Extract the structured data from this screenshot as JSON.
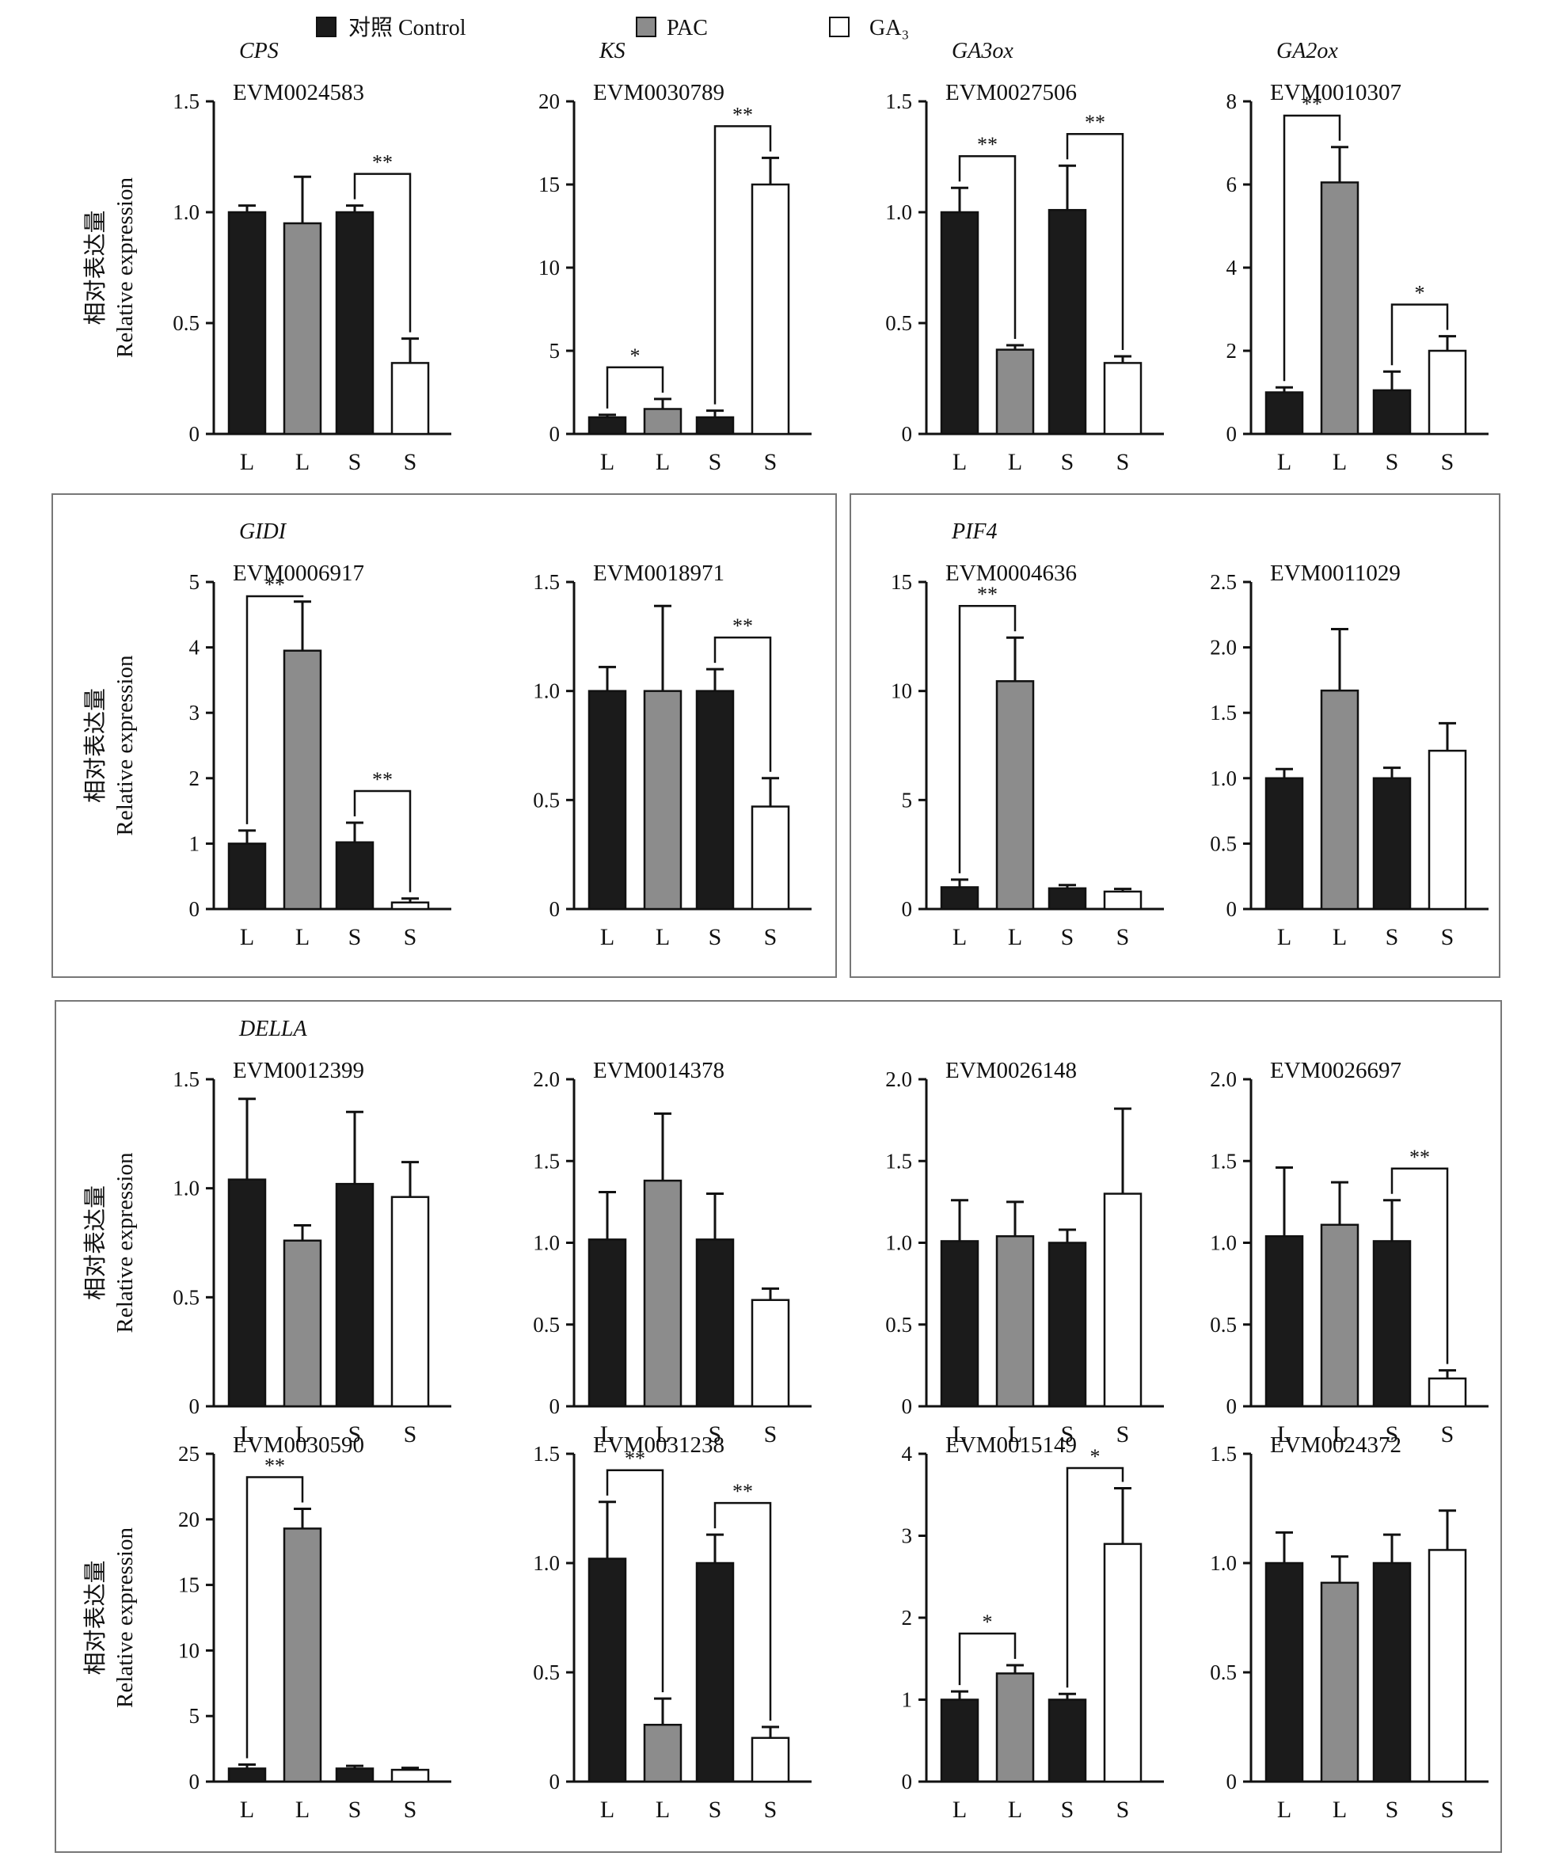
{
  "legend": [
    {
      "label": "对照 Control",
      "fill": "#1b1b1b"
    },
    {
      "label": "PAC",
      "fill": "#8c8c8c"
    },
    {
      "label": "GA₃",
      "fill": "#ffffff"
    }
  ],
  "y_label_cn": "相对表达量",
  "y_label_en": "Relative expression",
  "colors": {
    "control": "#1b1b1b",
    "pac": "#8c8c8c",
    "ga3": "#ffffff",
    "axis": "#111111",
    "frame": "#777777"
  },
  "chart_data": [
    {
      "id": "cps",
      "type": "bar",
      "gene": "CPS",
      "title": "EVM0024583",
      "categories": [
        "L",
        "L",
        "S",
        "S"
      ],
      "series": [
        "Control",
        "PAC",
        "Control",
        "GA3"
      ],
      "values": [
        1.0,
        0.95,
        1.0,
        0.32
      ],
      "errors": [
        0.03,
        0.21,
        0.03,
        0.11
      ],
      "ylim": [
        0,
        1.5
      ],
      "yticks": [
        "0",
        "0.5",
        "1.0",
        "1.5"
      ],
      "ylabel": "相对表达量 Relative expression",
      "significance": [
        {
          "pair": [
            2,
            3
          ],
          "label": "**"
        }
      ]
    },
    {
      "id": "ks",
      "type": "bar",
      "gene": "KS",
      "title": "EVM0030789",
      "categories": [
        "L",
        "L",
        "S",
        "S"
      ],
      "series": [
        "Control",
        "PAC",
        "Control",
        "GA3"
      ],
      "values": [
        1.0,
        1.5,
        1.0,
        15.0
      ],
      "errors": [
        0.15,
        0.6,
        0.4,
        1.6
      ],
      "ylim": [
        0,
        20
      ],
      "yticks": [
        "0",
        "5",
        "10",
        "15",
        "20"
      ],
      "significance": [
        {
          "pair": [
            0,
            1
          ],
          "label": "*"
        },
        {
          "pair": [
            2,
            3
          ],
          "label": "**"
        }
      ]
    },
    {
      "id": "ga3ox",
      "type": "bar",
      "gene": "GA3ox",
      "title": "EVM0027506",
      "categories": [
        "L",
        "L",
        "S",
        "S"
      ],
      "series": [
        "Control",
        "PAC",
        "Control",
        "GA3"
      ],
      "values": [
        1.0,
        0.38,
        1.01,
        0.32
      ],
      "errors": [
        0.11,
        0.02,
        0.2,
        0.03
      ],
      "ylim": [
        0,
        1.5
      ],
      "yticks": [
        "0",
        "0.5",
        "1.0",
        "1.5"
      ],
      "significance": [
        {
          "pair": [
            0,
            1
          ],
          "label": "**"
        },
        {
          "pair": [
            2,
            3
          ],
          "label": "**"
        }
      ]
    },
    {
      "id": "ga2ox",
      "type": "bar",
      "gene": "GA2ox",
      "title": "EVM0010307",
      "categories": [
        "L",
        "L",
        "S",
        "S"
      ],
      "series": [
        "Control",
        "PAC",
        "Control",
        "GA3"
      ],
      "values": [
        1.0,
        6.05,
        1.05,
        2.0
      ],
      "errors": [
        0.12,
        0.85,
        0.45,
        0.35
      ],
      "ylim": [
        0,
        8
      ],
      "yticks": [
        "0",
        "2",
        "4",
        "6",
        "8"
      ],
      "significance": [
        {
          "pair": [
            0,
            1
          ],
          "label": "**"
        },
        {
          "pair": [
            2,
            3
          ],
          "label": "*"
        }
      ]
    },
    {
      "id": "gid1",
      "type": "bar",
      "gene": "GIDI",
      "title": "EVM0006917",
      "categories": [
        "L",
        "L",
        "S",
        "S"
      ],
      "series": [
        "Control",
        "PAC",
        "Control",
        "GA3"
      ],
      "values": [
        1.0,
        3.95,
        1.02,
        0.1
      ],
      "errors": [
        0.2,
        0.75,
        0.3,
        0.06
      ],
      "ylim": [
        0,
        5
      ],
      "yticks": [
        "0",
        "1",
        "2",
        "3",
        "4",
        "5"
      ],
      "ylabel": "相对表达量 Relative expression",
      "significance": [
        {
          "pair": [
            0,
            1
          ],
          "label": "**"
        },
        {
          "pair": [
            2,
            3
          ],
          "label": "**"
        }
      ]
    },
    {
      "id": "gid1b",
      "type": "bar",
      "gene": "",
      "title": "EVM0018971",
      "categories": [
        "L",
        "L",
        "S",
        "S"
      ],
      "series": [
        "Control",
        "PAC",
        "Control",
        "GA3"
      ],
      "values": [
        1.0,
        1.0,
        1.0,
        0.47
      ],
      "errors": [
        0.11,
        0.39,
        0.1,
        0.13
      ],
      "ylim": [
        0,
        1.5
      ],
      "yticks": [
        "0",
        "0.5",
        "1.0",
        "1.5"
      ],
      "significance": [
        {
          "pair": [
            2,
            3
          ],
          "label": "**"
        }
      ]
    },
    {
      "id": "pif4",
      "type": "bar",
      "gene": "PIF4",
      "title": "EVM0004636",
      "categories": [
        "L",
        "L",
        "S",
        "S"
      ],
      "series": [
        "Control",
        "PAC",
        "Control",
        "GA3"
      ],
      "values": [
        1.0,
        10.45,
        0.95,
        0.8
      ],
      "errors": [
        0.35,
        2.0,
        0.15,
        0.12
      ],
      "ylim": [
        0,
        15
      ],
      "yticks": [
        "0",
        "5",
        "10",
        "15"
      ],
      "significance": [
        {
          "pair": [
            0,
            1
          ],
          "label": "**"
        }
      ]
    },
    {
      "id": "pif4b",
      "type": "bar",
      "gene": "",
      "title": "EVM0011029",
      "categories": [
        "L",
        "L",
        "S",
        "S"
      ],
      "series": [
        "Control",
        "PAC",
        "Control",
        "GA3"
      ],
      "values": [
        1.0,
        1.67,
        1.0,
        1.21
      ],
      "errors": [
        0.07,
        0.47,
        0.08,
        0.21
      ],
      "ylim": [
        0,
        2.5
      ],
      "yticks": [
        "0",
        "0.5",
        "1.0",
        "1.5",
        "2.0",
        "2.5"
      ],
      "significance": []
    },
    {
      "id": "della1",
      "type": "bar",
      "gene": "DELLA",
      "title": "EVM0012399",
      "categories": [
        "L",
        "L",
        "S",
        "S"
      ],
      "series": [
        "Control",
        "PAC",
        "Control",
        "GA3"
      ],
      "values": [
        1.04,
        0.76,
        1.02,
        0.96
      ],
      "errors": [
        0.37,
        0.07,
        0.33,
        0.16
      ],
      "ylim": [
        0,
        1.5
      ],
      "yticks": [
        "0",
        "0.5",
        "1.0",
        "1.5"
      ],
      "ylabel": "相对表达量 Relative expression",
      "significance": []
    },
    {
      "id": "della2",
      "type": "bar",
      "gene": "",
      "title": "EVM0014378",
      "categories": [
        "L",
        "L",
        "S",
        "S"
      ],
      "series": [
        "Control",
        "PAC",
        "Control",
        "GA3"
      ],
      "values": [
        1.02,
        1.38,
        1.02,
        0.65
      ],
      "errors": [
        0.29,
        0.41,
        0.28,
        0.07
      ],
      "ylim": [
        0,
        2.0
      ],
      "yticks": [
        "0",
        "0.5",
        "1.0",
        "1.5",
        "2.0"
      ],
      "significance": []
    },
    {
      "id": "della3",
      "type": "bar",
      "gene": "",
      "title": "EVM0026148",
      "categories": [
        "L",
        "L",
        "S",
        "S"
      ],
      "series": [
        "Control",
        "PAC",
        "Control",
        "GA3"
      ],
      "values": [
        1.01,
        1.04,
        1.0,
        1.3
      ],
      "errors": [
        0.25,
        0.21,
        0.08,
        0.52
      ],
      "ylim": [
        0,
        2.0
      ],
      "yticks": [
        "0",
        "0.5",
        "1.0",
        "1.5",
        "2.0"
      ],
      "significance": []
    },
    {
      "id": "della4",
      "type": "bar",
      "gene": "",
      "title": "EVM0026697",
      "categories": [
        "L",
        "L",
        "S",
        "S"
      ],
      "series": [
        "Control",
        "PAC",
        "Control",
        "GA3"
      ],
      "values": [
        1.04,
        1.11,
        1.01,
        0.17
      ],
      "errors": [
        0.42,
        0.26,
        0.25,
        0.05
      ],
      "ylim": [
        0,
        2.0
      ],
      "yticks": [
        "0",
        "0.5",
        "1.0",
        "1.5",
        "2.0"
      ],
      "significance": [
        {
          "pair": [
            2,
            3
          ],
          "label": "**"
        }
      ]
    },
    {
      "id": "della5",
      "type": "bar",
      "gene": "",
      "title": "EVM0030590",
      "categories": [
        "L",
        "L",
        "S",
        "S"
      ],
      "series": [
        "Control",
        "PAC",
        "Control",
        "GA3"
      ],
      "values": [
        1.0,
        19.3,
        1.0,
        0.9
      ],
      "errors": [
        0.3,
        1.5,
        0.2,
        0.15
      ],
      "ylim": [
        0,
        25
      ],
      "yticks": [
        "0",
        "5",
        "10",
        "15",
        "20",
        "25"
      ],
      "ylabel": "相对表达量 Relative expression",
      "significance": [
        {
          "pair": [
            0,
            1
          ],
          "label": "**"
        }
      ]
    },
    {
      "id": "della6",
      "type": "bar",
      "gene": "",
      "title": "EVM0031238",
      "categories": [
        "L",
        "L",
        "S",
        "S"
      ],
      "series": [
        "Control",
        "PAC",
        "Control",
        "GA3"
      ],
      "values": [
        1.02,
        0.26,
        1.0,
        0.2
      ],
      "errors": [
        0.26,
        0.12,
        0.13,
        0.05
      ],
      "ylim": [
        0,
        1.5
      ],
      "yticks": [
        "0",
        "0.5",
        "1.0",
        "1.5"
      ],
      "significance": [
        {
          "pair": [
            0,
            1
          ],
          "label": "**"
        },
        {
          "pair": [
            2,
            3
          ],
          "label": "**"
        }
      ]
    },
    {
      "id": "della7",
      "type": "bar",
      "gene": "",
      "title": "EVM0015149",
      "categories": [
        "L",
        "L",
        "S",
        "S"
      ],
      "series": [
        "Control",
        "PAC",
        "Control",
        "GA3"
      ],
      "values": [
        1.0,
        1.32,
        1.0,
        2.9
      ],
      "errors": [
        0.1,
        0.1,
        0.07,
        0.68
      ],
      "ylim": [
        0,
        4
      ],
      "yticks": [
        "0",
        "1",
        "2",
        "3",
        "4"
      ],
      "significance": [
        {
          "pair": [
            0,
            1
          ],
          "label": "*"
        },
        {
          "pair": [
            2,
            3
          ],
          "label": "*"
        }
      ]
    },
    {
      "id": "della8",
      "type": "bar",
      "gene": "",
      "title": "EVM0024372",
      "categories": [
        "L",
        "L",
        "S",
        "S"
      ],
      "series": [
        "Control",
        "PAC",
        "Control",
        "GA3"
      ],
      "values": [
        1.0,
        0.91,
        1.0,
        1.06
      ],
      "errors": [
        0.14,
        0.12,
        0.13,
        0.18
      ],
      "ylim": [
        0,
        1.5
      ],
      "yticks": [
        "0",
        "0.5",
        "1.0",
        "1.5"
      ],
      "significance": []
    }
  ]
}
